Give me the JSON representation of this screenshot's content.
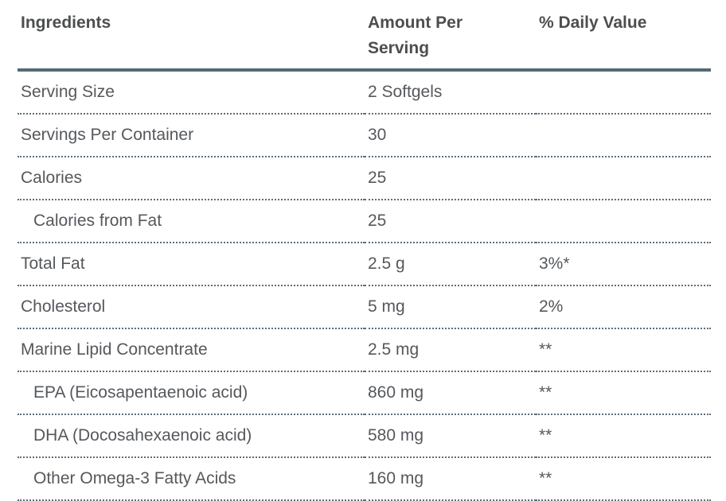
{
  "table": {
    "columns": [
      {
        "label": "Ingredients"
      },
      {
        "label": "Amount Per Serving"
      },
      {
        "label": "% Daily Value"
      }
    ],
    "rows": [
      {
        "ingredient": "Serving Size",
        "amount": "2 Softgels",
        "daily_value": "",
        "indent": false
      },
      {
        "ingredient": "Servings Per Container",
        "amount": "30",
        "daily_value": "",
        "indent": false
      },
      {
        "ingredient": "Calories",
        "amount": "25",
        "daily_value": "",
        "indent": false
      },
      {
        "ingredient": "Calories from Fat",
        "amount": "25",
        "daily_value": "",
        "indent": true
      },
      {
        "ingredient": "Total Fat",
        "amount": "2.5 g",
        "daily_value": "3%*",
        "indent": false
      },
      {
        "ingredient": "Cholesterol",
        "amount": "5 mg",
        "daily_value": "2%",
        "indent": false
      },
      {
        "ingredient": "Marine Lipid Concentrate",
        "amount": "2.5 mg",
        "daily_value": "**",
        "indent": false
      },
      {
        "ingredient": "EPA (Eicosapentaenoic acid)",
        "amount": "860 mg",
        "daily_value": "**",
        "indent": true
      },
      {
        "ingredient": "DHA (Docosahexaenoic acid)",
        "amount": "580 mg",
        "daily_value": "**",
        "indent": true
      },
      {
        "ingredient": "Other Omega-3 Fatty Acids",
        "amount": "160 mg",
        "daily_value": "**",
        "indent": true
      }
    ],
    "colors": {
      "header_text": "#4c4e50",
      "body_text": "#55585c",
      "header_border": "#546a76",
      "row_border": "#5f6d79",
      "page_bg": "#ffffff"
    }
  }
}
